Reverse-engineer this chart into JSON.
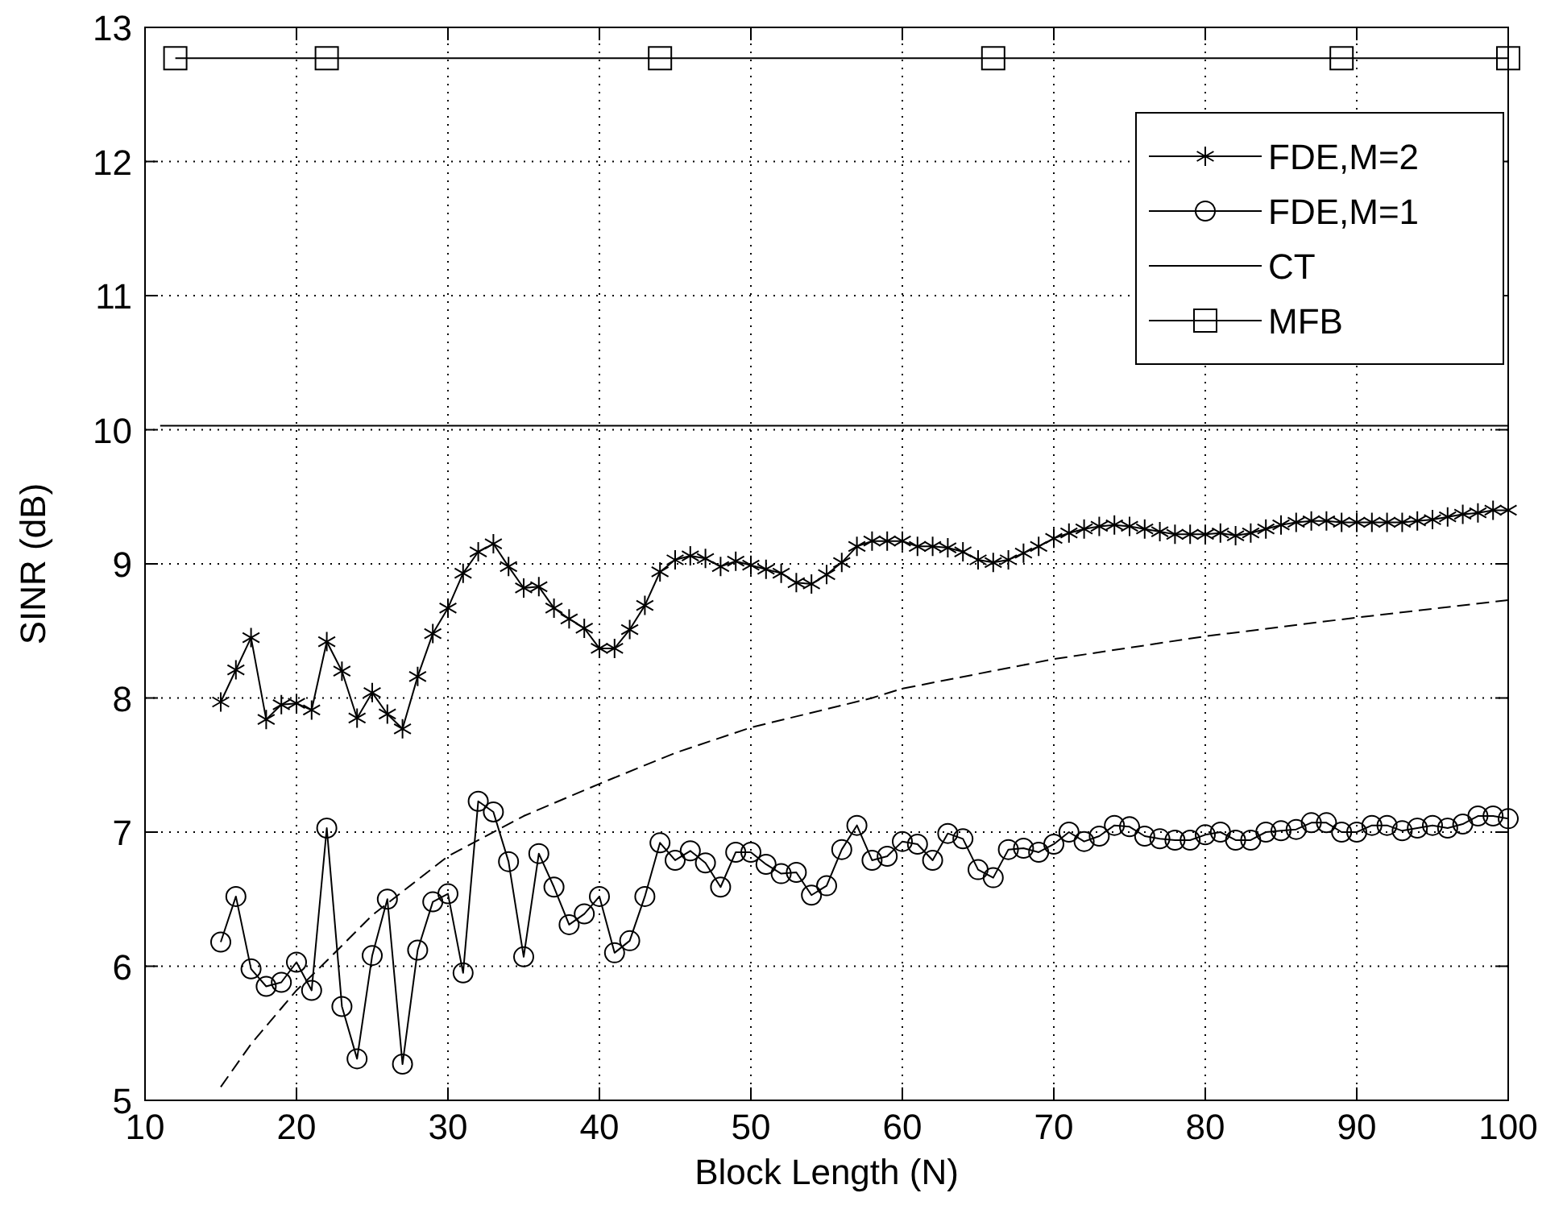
{
  "chart_data": {
    "type": "line",
    "xlabel": "Block Length (N)",
    "ylabel": "SINR (dB)",
    "xlim": [
      10,
      100
    ],
    "ylim": [
      5,
      13
    ],
    "xticks": [
      10,
      20,
      30,
      40,
      50,
      60,
      70,
      80,
      90,
      100
    ],
    "yticks": [
      5,
      6,
      7,
      8,
      9,
      10,
      11,
      12,
      13
    ],
    "grid": true,
    "legend": "top right",
    "series": [
      {
        "name": "FDE,M=2",
        "color": "#000000",
        "marker": "cross",
        "x": [
          15,
          16,
          17,
          18,
          19,
          20,
          21,
          22,
          23,
          24,
          25,
          26,
          27,
          28,
          29,
          30,
          31,
          32,
          33,
          34,
          35,
          36,
          37,
          38,
          39,
          40,
          41,
          42,
          43,
          44,
          45,
          46,
          47,
          48,
          49,
          50,
          51,
          52,
          53,
          54,
          55,
          56,
          57,
          58,
          59,
          60,
          61,
          62,
          63,
          64,
          65,
          66,
          67,
          68,
          69,
          70,
          71,
          72,
          73,
          74,
          75,
          76,
          77,
          78,
          79,
          80,
          81,
          82,
          83,
          84,
          85,
          86,
          87,
          88,
          89,
          90,
          91,
          92,
          93,
          94,
          95,
          96,
          97,
          98,
          99,
          100
        ],
        "values": [
          7.97,
          8.21,
          8.45,
          7.84,
          7.95,
          7.96,
          7.91,
          8.42,
          8.2,
          7.85,
          8.04,
          7.88,
          7.77,
          8.16,
          8.48,
          8.67,
          8.93,
          9.09,
          9.15,
          8.98,
          8.82,
          8.83,
          8.67,
          8.59,
          8.52,
          8.37,
          8.37,
          8.51,
          8.69,
          8.94,
          9.03,
          9.06,
          9.04,
          8.98,
          9.02,
          8.99,
          8.96,
          8.93,
          8.86,
          8.85,
          8.92,
          9.01,
          9.13,
          9.17,
          9.17,
          9.17,
          9.13,
          9.13,
          9.12,
          9.09,
          9.03,
          9.01,
          9.03,
          9.08,
          9.13,
          9.19,
          9.23,
          9.26,
          9.28,
          9.29,
          9.28,
          9.26,
          9.24,
          9.22,
          9.22,
          9.22,
          9.23,
          9.21,
          9.23,
          9.26,
          9.29,
          9.31,
          9.32,
          9.32,
          9.31,
          9.31,
          9.31,
          9.31,
          9.31,
          9.32,
          9.33,
          9.35,
          9.37,
          9.38,
          9.4,
          9.4
        ]
      },
      {
        "name": "FDE,M=1",
        "color": "#000000",
        "marker": "circle",
        "x": [
          15,
          16,
          17,
          18,
          19,
          20,
          21,
          22,
          23,
          24,
          25,
          26,
          27,
          28,
          29,
          30,
          31,
          32,
          33,
          34,
          35,
          36,
          37,
          38,
          39,
          40,
          41,
          42,
          43,
          44,
          45,
          46,
          47,
          48,
          49,
          50,
          51,
          52,
          53,
          54,
          55,
          56,
          57,
          58,
          59,
          60,
          61,
          62,
          63,
          64,
          65,
          66,
          67,
          68,
          69,
          70,
          71,
          72,
          73,
          74,
          75,
          76,
          77,
          78,
          79,
          80,
          81,
          82,
          83,
          84,
          85,
          86,
          87,
          88,
          89,
          90,
          91,
          92,
          93,
          94,
          95,
          96,
          97,
          98,
          99,
          100
        ],
        "values": [
          6.18,
          6.52,
          5.98,
          5.85,
          5.88,
          6.03,
          5.82,
          7.03,
          5.7,
          5.31,
          6.08,
          6.5,
          5.27,
          6.12,
          6.48,
          6.54,
          5.95,
          7.23,
          7.15,
          6.78,
          6.07,
          6.84,
          6.59,
          6.31,
          6.39,
          6.52,
          6.1,
          6.19,
          6.52,
          6.92,
          6.79,
          6.86,
          6.77,
          6.59,
          6.85,
          6.85,
          6.76,
          6.69,
          6.7,
          6.53,
          6.6,
          6.87,
          7.05,
          6.79,
          6.82,
          6.93,
          6.91,
          6.79,
          6.99,
          6.95,
          6.72,
          6.66,
          6.87,
          6.88,
          6.85,
          6.91,
          7,
          6.93,
          6.97,
          7.05,
          7.04,
          6.97,
          6.95,
          6.94,
          6.94,
          6.98,
          7,
          6.94,
          6.94,
          7,
          7.01,
          7.02,
          7.07,
          7.07,
          7,
          7,
          7.05,
          7.05,
          7.01,
          7.03,
          7.05,
          7.03,
          7.06,
          7.12,
          7.12,
          7.1
        ]
      },
      {
        "name": "CT",
        "color": "#000000",
        "marker": "none",
        "x": [
          11,
          100
        ],
        "values": [
          10.03,
          10.03
        ]
      },
      {
        "name": "MFB",
        "color": "#000000",
        "marker": "square",
        "x": [
          12,
          22,
          44,
          66,
          89,
          100
        ],
        "values": [
          12.77,
          12.77,
          12.77,
          12.77,
          12.77,
          12.77
        ]
      },
      {
        "color": "#000000",
        "marker": "none",
        "line_style": "dashed",
        "x": [
          15,
          17,
          20,
          22,
          25,
          30,
          35,
          40,
          45,
          50,
          58,
          60,
          70,
          80,
          90,
          100
        ],
        "values": [
          5.1,
          5.42,
          5.82,
          6.04,
          6.38,
          6.82,
          7.12,
          7.36,
          7.59,
          7.78,
          8.0,
          8.07,
          8.29,
          8.46,
          8.6,
          8.73
        ]
      }
    ]
  }
}
